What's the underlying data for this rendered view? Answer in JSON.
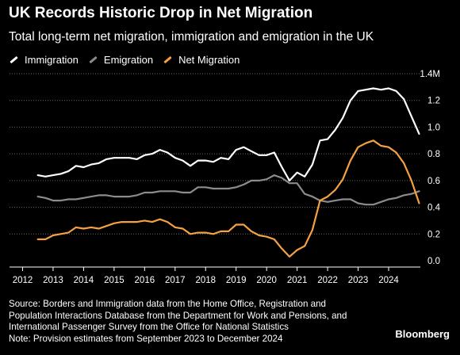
{
  "title": "UK Records Historic Drop in Net Migration",
  "subtitle": "Total long-term net migration, immigration and emigration in the UK",
  "legend": [
    {
      "label": "Immigration",
      "color": "#ffffff"
    },
    {
      "label": "Emigration",
      "color": "#8c8c8c"
    },
    {
      "label": "Net Migration",
      "color": "#f5a142"
    }
  ],
  "footer": {
    "source_line1": "Source: Borders and Immigration data from the Home Office, Registration and",
    "source_line2": "Population Interactions Database from the Department for Work and Pensions, and",
    "source_line3": "International Passenger Survey from the Office for National Statistics",
    "note": "Note: Provision estimates from September 2023 to December 2024"
  },
  "brand": "Bloomberg",
  "chart_data": {
    "type": "line",
    "title": "UK Records Historic Drop in Net Migration",
    "subtitle": "Total long-term net migration, immigration and emigration in the UK",
    "xlabel": "",
    "ylabel": "",
    "xlim": [
      2011.8,
      2025.25
    ],
    "ylim": [
      0,
      1.4
    ],
    "x_ticks": [
      2012,
      2013,
      2014,
      2015,
      2016,
      2017,
      2018,
      2019,
      2020,
      2021,
      2022,
      2023,
      2024
    ],
    "y_ticks": [
      0,
      0.2,
      0.4,
      0.6,
      0.8,
      1.0,
      1.2,
      1.4
    ],
    "y_tick_labels": [
      "0.0",
      "0.2",
      "0.4",
      "0.6",
      "0.8",
      "1.0",
      "1.2",
      "1.4M"
    ],
    "grid": "horizontal",
    "legend_position": "top-left",
    "series": [
      {
        "name": "Immigration",
        "color": "#ffffff",
        "points": [
          [
            2012.5,
            0.64
          ],
          [
            2012.75,
            0.63
          ],
          [
            2013.0,
            0.64
          ],
          [
            2013.25,
            0.65
          ],
          [
            2013.5,
            0.67
          ],
          [
            2013.75,
            0.71
          ],
          [
            2014.0,
            0.7
          ],
          [
            2014.25,
            0.72
          ],
          [
            2014.5,
            0.73
          ],
          [
            2014.75,
            0.76
          ],
          [
            2015.0,
            0.77
          ],
          [
            2015.25,
            0.77
          ],
          [
            2015.5,
            0.77
          ],
          [
            2015.75,
            0.76
          ],
          [
            2016.0,
            0.79
          ],
          [
            2016.25,
            0.8
          ],
          [
            2016.5,
            0.83
          ],
          [
            2016.75,
            0.81
          ],
          [
            2017.0,
            0.77
          ],
          [
            2017.25,
            0.75
          ],
          [
            2017.5,
            0.71
          ],
          [
            2017.75,
            0.75
          ],
          [
            2018.0,
            0.75
          ],
          [
            2018.25,
            0.74
          ],
          [
            2018.5,
            0.77
          ],
          [
            2018.75,
            0.76
          ],
          [
            2019.0,
            0.83
          ],
          [
            2019.25,
            0.85
          ],
          [
            2019.5,
            0.82
          ],
          [
            2019.75,
            0.79
          ],
          [
            2020.0,
            0.79
          ],
          [
            2020.25,
            0.81
          ],
          [
            2020.5,
            0.7
          ],
          [
            2020.75,
            0.6
          ],
          [
            2021.0,
            0.66
          ],
          [
            2021.25,
            0.63
          ],
          [
            2021.5,
            0.72
          ],
          [
            2021.75,
            0.9
          ],
          [
            2022.0,
            0.91
          ],
          [
            2022.25,
            0.98
          ],
          [
            2022.5,
            1.07
          ],
          [
            2022.75,
            1.2
          ],
          [
            2023.0,
            1.27
          ],
          [
            2023.25,
            1.28
          ],
          [
            2023.5,
            1.29
          ],
          [
            2023.75,
            1.28
          ],
          [
            2024.0,
            1.29
          ],
          [
            2024.25,
            1.27
          ],
          [
            2024.5,
            1.21
          ],
          [
            2024.75,
            1.08
          ],
          [
            2025.0,
            0.95
          ]
        ]
      },
      {
        "name": "Emigration",
        "color": "#8c8c8c",
        "points": [
          [
            2012.5,
            0.48
          ],
          [
            2012.75,
            0.47
          ],
          [
            2013.0,
            0.45
          ],
          [
            2013.25,
            0.45
          ],
          [
            2013.5,
            0.46
          ],
          [
            2013.75,
            0.46
          ],
          [
            2014.0,
            0.47
          ],
          [
            2014.25,
            0.48
          ],
          [
            2014.5,
            0.49
          ],
          [
            2014.75,
            0.49
          ],
          [
            2015.0,
            0.48
          ],
          [
            2015.25,
            0.48
          ],
          [
            2015.5,
            0.48
          ],
          [
            2015.75,
            0.49
          ],
          [
            2016.0,
            0.51
          ],
          [
            2016.25,
            0.51
          ],
          [
            2016.5,
            0.52
          ],
          [
            2016.75,
            0.52
          ],
          [
            2017.0,
            0.52
          ],
          [
            2017.25,
            0.51
          ],
          [
            2017.5,
            0.51
          ],
          [
            2017.75,
            0.55
          ],
          [
            2018.0,
            0.55
          ],
          [
            2018.25,
            0.54
          ],
          [
            2018.5,
            0.54
          ],
          [
            2018.75,
            0.54
          ],
          [
            2019.0,
            0.55
          ],
          [
            2019.25,
            0.57
          ],
          [
            2019.5,
            0.6
          ],
          [
            2019.75,
            0.6
          ],
          [
            2020.0,
            0.61
          ],
          [
            2020.25,
            0.64
          ],
          [
            2020.5,
            0.62
          ],
          [
            2020.75,
            0.58
          ],
          [
            2021.0,
            0.58
          ],
          [
            2021.25,
            0.5
          ],
          [
            2021.5,
            0.48
          ],
          [
            2021.75,
            0.45
          ],
          [
            2022.0,
            0.44
          ],
          [
            2022.25,
            0.45
          ],
          [
            2022.5,
            0.46
          ],
          [
            2022.75,
            0.46
          ],
          [
            2023.0,
            0.43
          ],
          [
            2023.25,
            0.42
          ],
          [
            2023.5,
            0.42
          ],
          [
            2023.75,
            0.44
          ],
          [
            2024.0,
            0.46
          ],
          [
            2024.25,
            0.47
          ],
          [
            2024.5,
            0.49
          ],
          [
            2024.75,
            0.5
          ],
          [
            2025.0,
            0.52
          ]
        ]
      },
      {
        "name": "Net Migration",
        "color": "#f5a142",
        "points": [
          [
            2012.5,
            0.16
          ],
          [
            2012.75,
            0.16
          ],
          [
            2013.0,
            0.19
          ],
          [
            2013.25,
            0.2
          ],
          [
            2013.5,
            0.21
          ],
          [
            2013.75,
            0.25
          ],
          [
            2014.0,
            0.24
          ],
          [
            2014.25,
            0.25
          ],
          [
            2014.5,
            0.24
          ],
          [
            2014.75,
            0.26
          ],
          [
            2015.0,
            0.28
          ],
          [
            2015.25,
            0.29
          ],
          [
            2015.5,
            0.29
          ],
          [
            2015.75,
            0.29
          ],
          [
            2016.0,
            0.3
          ],
          [
            2016.25,
            0.29
          ],
          [
            2016.5,
            0.31
          ],
          [
            2016.75,
            0.29
          ],
          [
            2017.0,
            0.25
          ],
          [
            2017.25,
            0.24
          ],
          [
            2017.5,
            0.2
          ],
          [
            2017.75,
            0.21
          ],
          [
            2018.0,
            0.21
          ],
          [
            2018.25,
            0.2
          ],
          [
            2018.5,
            0.22
          ],
          [
            2018.75,
            0.22
          ],
          [
            2019.0,
            0.27
          ],
          [
            2019.25,
            0.27
          ],
          [
            2019.5,
            0.22
          ],
          [
            2019.75,
            0.19
          ],
          [
            2020.0,
            0.18
          ],
          [
            2020.25,
            0.16
          ],
          [
            2020.5,
            0.09
          ],
          [
            2020.75,
            0.03
          ],
          [
            2021.0,
            0.08
          ],
          [
            2021.25,
            0.11
          ],
          [
            2021.5,
            0.23
          ],
          [
            2021.75,
            0.45
          ],
          [
            2022.0,
            0.48
          ],
          [
            2022.25,
            0.53
          ],
          [
            2022.5,
            0.61
          ],
          [
            2022.75,
            0.75
          ],
          [
            2023.0,
            0.85
          ],
          [
            2023.25,
            0.88
          ],
          [
            2023.5,
            0.9
          ],
          [
            2023.75,
            0.86
          ],
          [
            2024.0,
            0.85
          ],
          [
            2024.25,
            0.81
          ],
          [
            2024.5,
            0.73
          ],
          [
            2024.75,
            0.6
          ],
          [
            2025.0,
            0.43
          ]
        ]
      }
    ]
  }
}
